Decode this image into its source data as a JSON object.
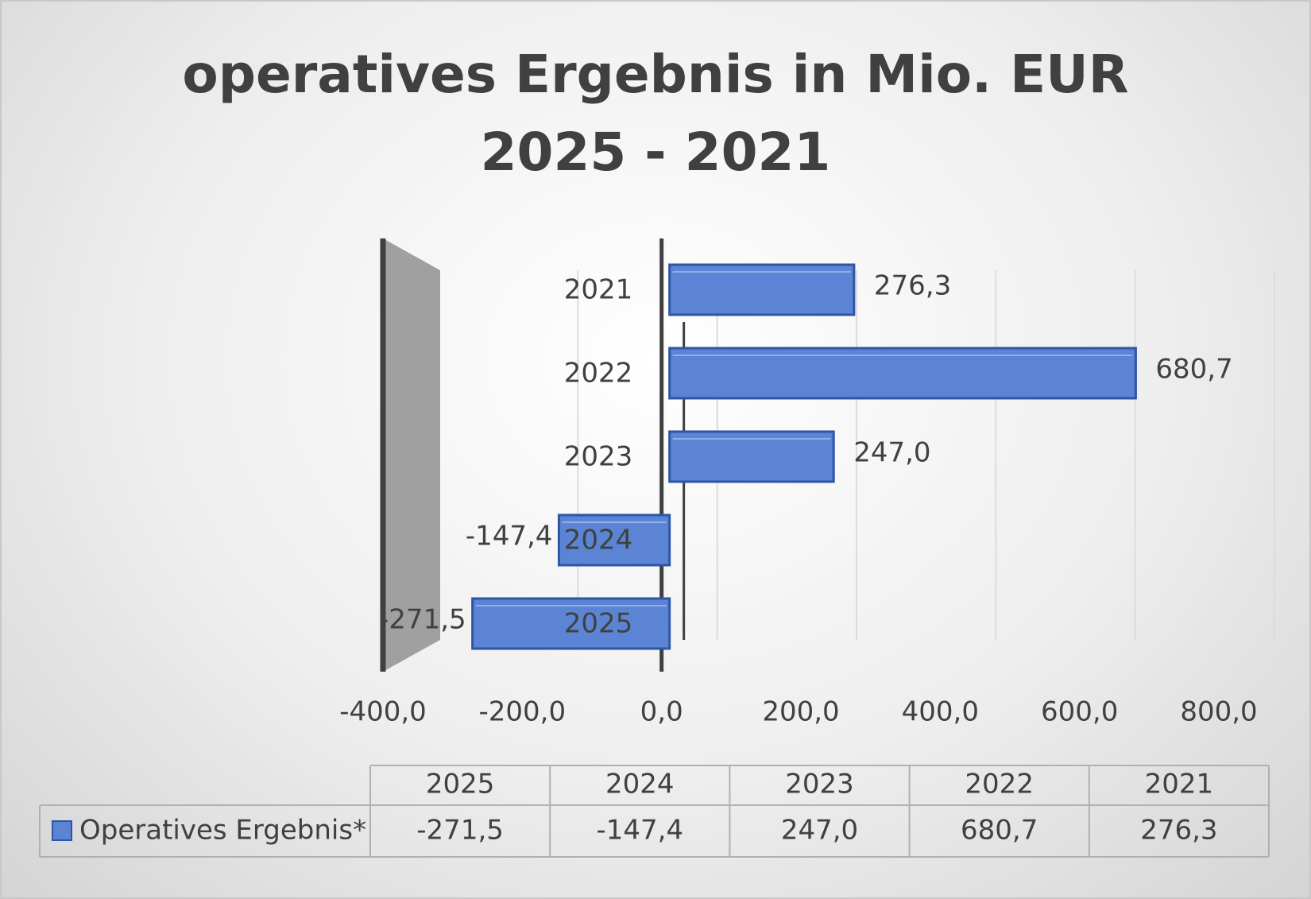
{
  "chart_data": {
    "type": "bar",
    "orientation": "horizontal",
    "title": "operatives Ergebnis in Mio. EUR 2025 - 2021",
    "categories": [
      "2025",
      "2024",
      "2023",
      "2022",
      "2021"
    ],
    "series": [
      {
        "name": "Operatives Ergebnis*",
        "color": "#5b84d4",
        "values": [
          -271.5,
          -147.4,
          247.0,
          680.7,
          276.3
        ],
        "value_labels": [
          "-271,5",
          "-147,4",
          "247,0",
          "680,7",
          "276,3"
        ]
      }
    ],
    "xlim": [
      -400,
      800
    ],
    "xticks": [
      {
        "value": -400,
        "label": "-400,0"
      },
      {
        "value": -200,
        "label": "-200,0"
      },
      {
        "value": 0,
        "label": "0,0"
      },
      {
        "value": 200,
        "label": "200,0"
      },
      {
        "value": 400,
        "label": "400,0"
      },
      {
        "value": 600,
        "label": "600,0"
      },
      {
        "value": 800,
        "label": "800,0"
      }
    ],
    "grid": true,
    "data_table": true
  }
}
